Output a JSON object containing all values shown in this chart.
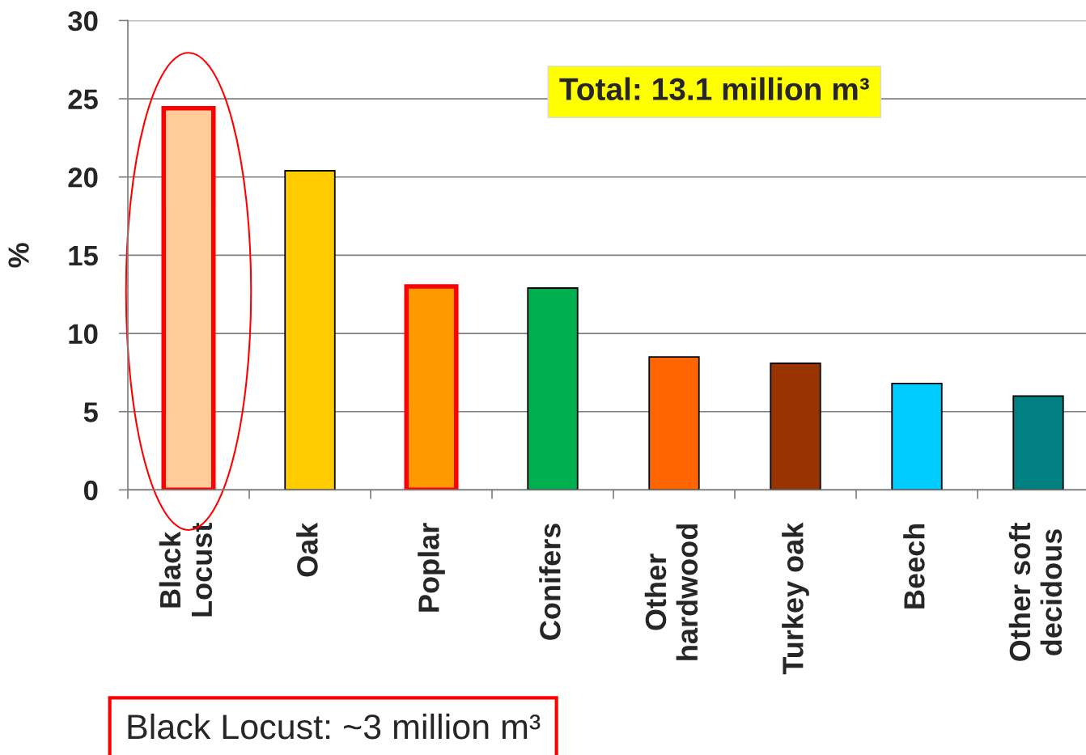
{
  "chart_data": {
    "type": "bar",
    "ylabel": "%",
    "categories": [
      "Black\nLocust",
      "Oak",
      "Poplar",
      "Conifers",
      "Other\nhardwood",
      "Turkey oak",
      "Beech",
      "Other soft\ndecidous"
    ],
    "values": [
      24.4,
      20.4,
      13.0,
      12.9,
      8.5,
      8.1,
      6.8,
      6.0
    ],
    "colors": [
      "#ffcc99",
      "#ffcc00",
      "#ff9900",
      "#00b050",
      "#ff6600",
      "#993300",
      "#00ccff",
      "#008080"
    ],
    "ylim": [
      0,
      30
    ],
    "yticks": [
      0,
      5,
      10,
      15,
      20,
      25,
      30
    ],
    "grid": "y",
    "annotations": [
      "Total: 13.1 million m³",
      "Black Locust: ~3 million m³"
    ]
  }
}
